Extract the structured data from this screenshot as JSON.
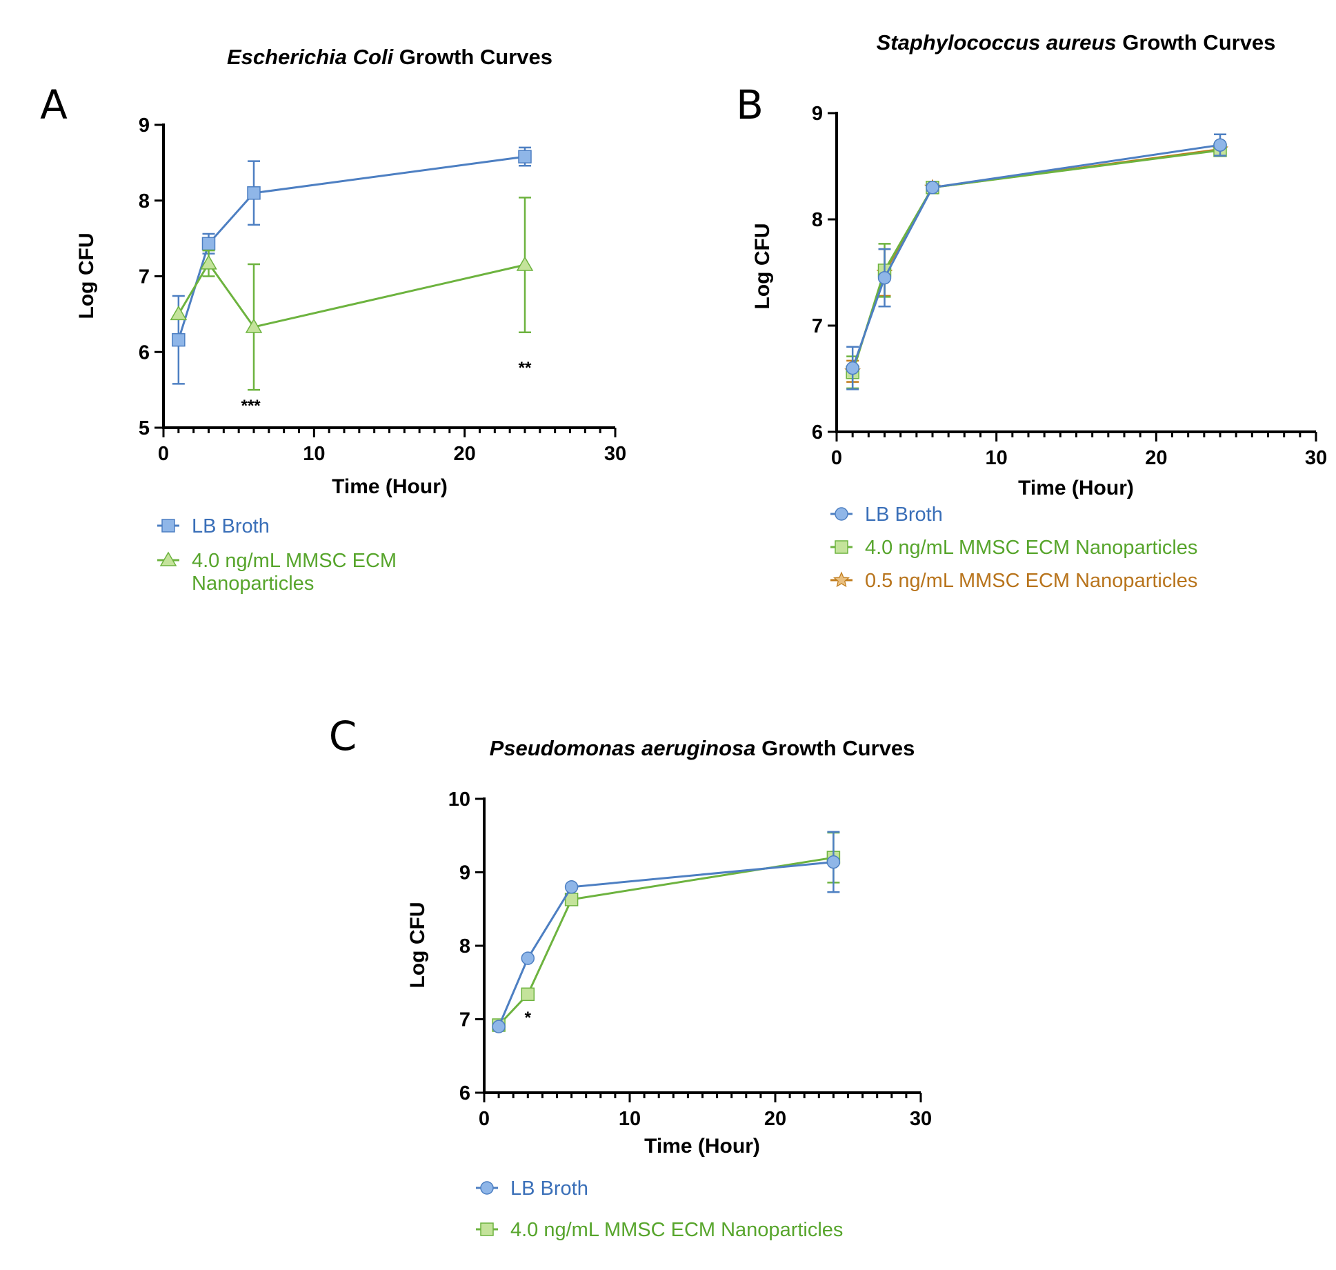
{
  "colors": {
    "lb_line": "#4d7fc2",
    "lb_marker": "#8fb6e8",
    "green_line": "#6db33f",
    "green_marker": "#c4e39b",
    "orange_line": "#c07c1c",
    "orange_marker": "#e9bf7f",
    "lb_text": "#3a6fb8",
    "green_text": "#57a52c",
    "orange_text": "#b8741c"
  },
  "chart_data": [
    {
      "id": "A",
      "panel_label": "A",
      "type": "line",
      "title_italic": "Escherichia Coli",
      "title_rest": " Growth Curves",
      "xlabel": "Time (Hour)",
      "ylabel": "Log CFU",
      "xlim": [
        0,
        30
      ],
      "ylim": [
        5,
        9
      ],
      "xticks": [
        "0",
        "10",
        "20",
        "30"
      ],
      "yticks": [
        "5",
        "6",
        "7",
        "8",
        "9"
      ],
      "series": [
        {
          "name": "LB Broth",
          "marker": "square",
          "x": [
            1,
            3,
            6,
            24
          ],
          "y": [
            6.16,
            7.43,
            8.1,
            8.58
          ],
          "err": [
            0.58,
            0.13,
            0.42,
            0.12
          ]
        },
        {
          "name": "4.0 ng/mL MMSC ECM Nanoparticles",
          "marker": "triangle",
          "x": [
            1,
            3,
            6,
            24
          ],
          "y": [
            6.5,
            7.17,
            6.33,
            7.15
          ],
          "err": [
            0.0,
            0.17,
            0.83,
            0.89
          ]
        }
      ],
      "annotations": [
        {
          "text": "***",
          "x": 5.8,
          "y": 5.22
        },
        {
          "text": "**",
          "x": 24,
          "y": 5.72
        }
      ],
      "legend": [
        "LB Broth",
        "4.0 ng/mL MMSC ECM",
        "Nanoparticles"
      ]
    },
    {
      "id": "B",
      "panel_label": "B",
      "type": "line",
      "title_italic": "Staphylococcus aureus",
      "title_rest": " Growth Curves",
      "xlabel": "Time (Hour)",
      "ylabel": "Log CFU",
      "xlim": [
        0,
        30
      ],
      "ylim": [
        6,
        9
      ],
      "xticks": [
        "0",
        "10",
        "20",
        "30"
      ],
      "yticks": [
        "6",
        "7",
        "8",
        "9"
      ],
      "series": [
        {
          "name": "0.5 ng/mL MMSC ECM Nanoparticles",
          "marker": "star",
          "x": [
            1,
            3,
            6,
            24
          ],
          "y": [
            6.57,
            7.5,
            8.3,
            8.66
          ],
          "err": [
            0.1,
            0.22,
            0.02,
            0.04
          ]
        },
        {
          "name": "4.0 ng/mL MMSC ECM Nanoparticles",
          "marker": "square",
          "x": [
            1,
            3,
            6,
            24
          ],
          "y": [
            6.56,
            7.52,
            8.3,
            8.65
          ],
          "err": [
            0.15,
            0.25,
            0.02,
            0.04
          ]
        },
        {
          "name": "LB Broth",
          "marker": "circle",
          "x": [
            1,
            3,
            6,
            24
          ],
          "y": [
            6.6,
            7.45,
            8.3,
            8.7
          ],
          "err": [
            0.2,
            0.27,
            0.03,
            0.1
          ]
        }
      ],
      "annotations": [],
      "legend": [
        "LB Broth",
        "4.0 ng/mL MMSC ECM Nanoparticles",
        "0.5 ng/mL MMSC ECM Nanoparticles"
      ]
    },
    {
      "id": "C",
      "panel_label": "C",
      "type": "line",
      "title_italic": "Pseudomonas aeruginosa",
      "title_rest": " Growth Curves",
      "xlabel": "Time (Hour)",
      "ylabel": "Log CFU",
      "xlim": [
        0,
        30
      ],
      "ylim": [
        6,
        10
      ],
      "xticks": [
        "0",
        "10",
        "20",
        "30"
      ],
      "yticks": [
        "6",
        "7",
        "8",
        "9",
        "10"
      ],
      "series": [
        {
          "name": "4.0 ng/mL MMSC ECM Nanoparticles",
          "marker": "square",
          "x": [
            1,
            3,
            6,
            24
          ],
          "y": [
            6.92,
            7.34,
            8.63,
            9.2
          ],
          "err": [
            0.0,
            0.0,
            0.07,
            0.34
          ]
        },
        {
          "name": "LB Broth",
          "marker": "circle",
          "x": [
            1,
            3,
            6,
            24
          ],
          "y": [
            6.9,
            7.83,
            8.8,
            9.14
          ],
          "err": [
            0.0,
            0.0,
            0.0,
            0.41
          ]
        }
      ],
      "annotations": [
        {
          "text": "*",
          "x": 3,
          "y": 6.95
        }
      ],
      "legend": [
        "LB Broth",
        "4.0 ng/mL MMSC ECM Nanoparticles"
      ]
    }
  ]
}
